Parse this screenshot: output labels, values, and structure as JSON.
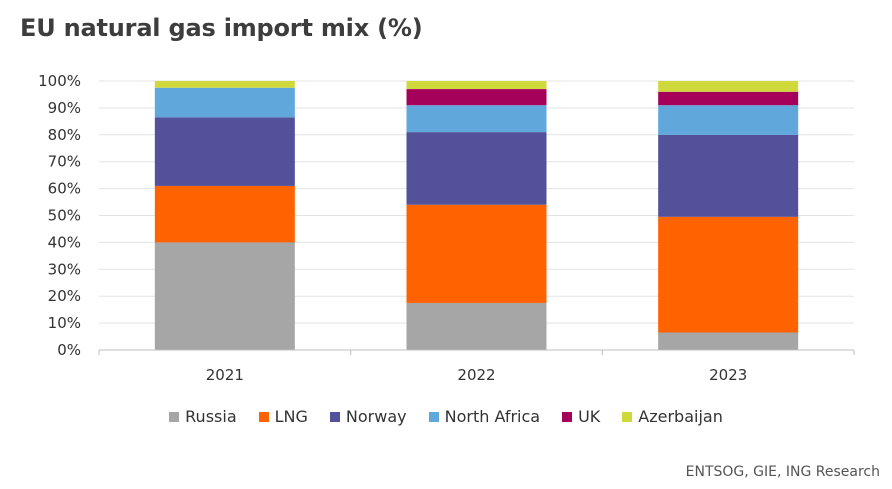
{
  "title": "EU natural gas import mix (%)",
  "source": "ENTSOG, GIE, ING Research",
  "chart_data": {
    "type": "bar",
    "stacked": true,
    "title": "EU natural gas import mix (%)",
    "xlabel": "",
    "ylabel": "",
    "ylim": [
      0,
      100
    ],
    "yticks": [
      "0%",
      "10%",
      "20%",
      "30%",
      "40%",
      "50%",
      "60%",
      "70%",
      "80%",
      "90%",
      "100%"
    ],
    "categories": [
      "2021",
      "2022",
      "2023"
    ],
    "series": [
      {
        "name": "Russia",
        "color": "#a6a6a6",
        "values": [
          40,
          17.5,
          6.5
        ]
      },
      {
        "name": "LNG",
        "color": "#ff6200",
        "values": [
          21,
          36.5,
          43
        ]
      },
      {
        "name": "Norway",
        "color": "#525199",
        "values": [
          25.5,
          27,
          30.5
        ]
      },
      {
        "name": "North Africa",
        "color": "#60a8dc",
        "values": [
          11,
          10,
          11
        ]
      },
      {
        "name": "UK",
        "color": "#a5005a",
        "values": [
          0,
          6,
          5
        ]
      },
      {
        "name": "Azerbaijan",
        "color": "#d0d93c",
        "values": [
          2.5,
          3,
          4
        ]
      }
    ],
    "legend_position": "bottom"
  }
}
